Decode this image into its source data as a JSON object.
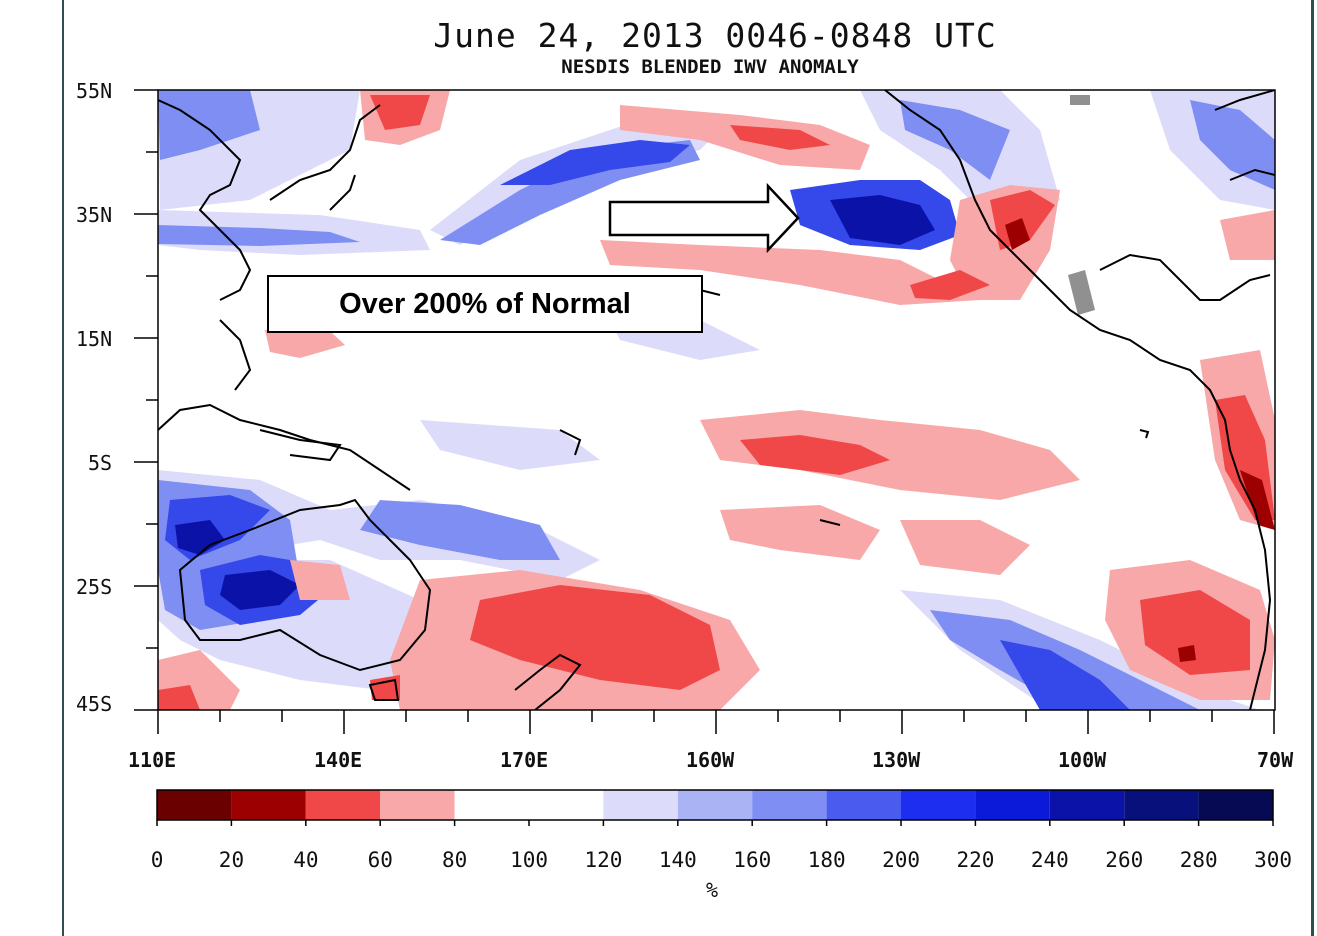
{
  "title": "June 24, 2013  0046-0848 UTC",
  "subtitle": "NESDIS BLENDED IWV ANOMALY",
  "callout": "Over 200% of Normal",
  "lat_labels": [
    "55N",
    "35N",
    "15N",
    "5S",
    "25S",
    "45S"
  ],
  "lon_labels": [
    "110E",
    "140E",
    "170E",
    "160W",
    "130W",
    "100W",
    "70W"
  ],
  "colorbar": {
    "ticks": [
      "0",
      "20",
      "40",
      "60",
      "80",
      "100",
      "120",
      "140",
      "160",
      "180",
      "200",
      "220",
      "240",
      "260",
      "280",
      "300"
    ],
    "unit": "%",
    "colors": [
      "#6b0000",
      "#9c0000",
      "#f04848",
      "#f8a8a8",
      "#ffffff",
      "#dcdcfa",
      "#aab4f5",
      "#7e8ef2",
      "#4a5cf0",
      "#1e2ef0",
      "#0a1ad8",
      "#0a12a8",
      "#08107c",
      "#060a52"
    ]
  },
  "features": {
    "colors": {
      "dark_red": "#9c0000",
      "red": "#f04848",
      "light_red": "#f8a8a8",
      "light_blue": "#dcdcfa",
      "mid_blue": "#7e8ef2",
      "blue": "#3548ea",
      "dark_blue": "#0a12a8",
      "missing": "#909090",
      "coast": "#000000"
    }
  }
}
